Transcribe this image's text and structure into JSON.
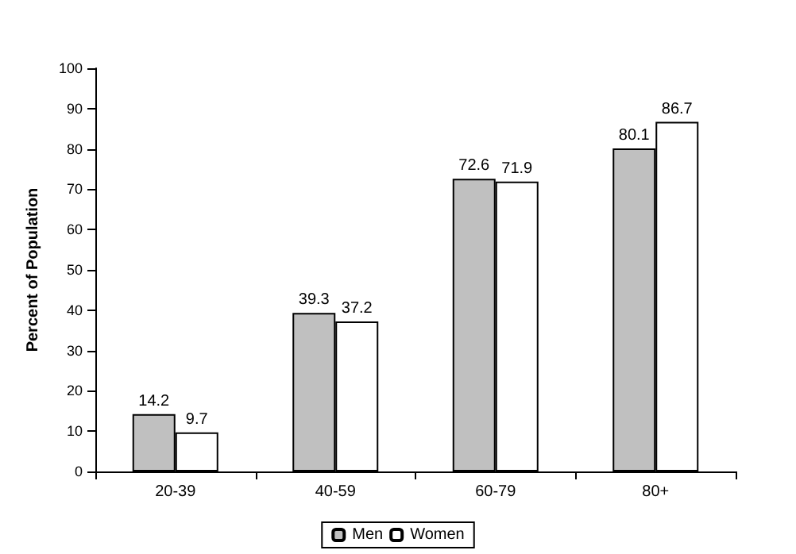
{
  "chart_data": {
    "type": "bar",
    "ylabel": "Percent of Population",
    "categories": [
      "20-39",
      "40-59",
      "60-79",
      "80+"
    ],
    "series": [
      {
        "name": "Men",
        "color": "#c0c0c0",
        "values": [
          14.2,
          39.3,
          72.6,
          80.1
        ]
      },
      {
        "name": "Women",
        "color": "#ffffff",
        "values": [
          9.7,
          37.2,
          71.9,
          86.7
        ]
      }
    ],
    "ylim": [
      0,
      100
    ],
    "yticks": [
      0,
      10,
      20,
      30,
      40,
      50,
      60,
      70,
      80,
      90,
      100
    ],
    "grid": false,
    "legend": "bottom",
    "data_labels": true
  }
}
